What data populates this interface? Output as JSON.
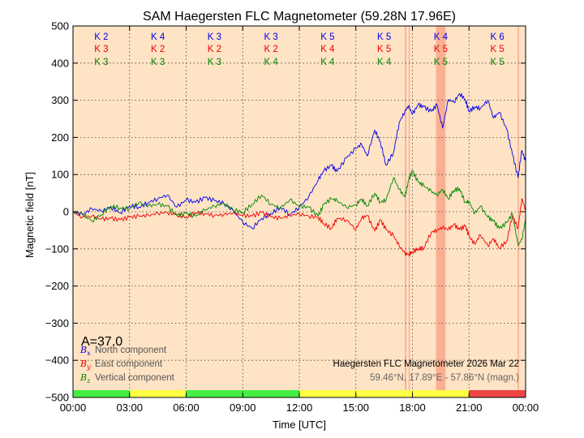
{
  "chart_data": {
    "type": "line",
    "title": "SAM Haegersten FLC Magnetometer (59.28N 17.96E)",
    "xlabel": "Time [UTC]",
    "ylabel": "Magnetic field [nT]",
    "xlim": [
      0,
      24
    ],
    "ylim": [
      -500,
      500
    ],
    "grid": true,
    "x_ticks": [
      {
        "value": 0,
        "label": "00:00"
      },
      {
        "value": 3,
        "label": "03:00"
      },
      {
        "value": 6,
        "label": "06:00"
      },
      {
        "value": 9,
        "label": "09:00"
      },
      {
        "value": 12,
        "label": "12:00"
      },
      {
        "value": 15,
        "label": "15:00"
      },
      {
        "value": 18,
        "label": "18:00"
      },
      {
        "value": 21,
        "label": "21:00"
      },
      {
        "value": 24,
        "label": "00:00"
      }
    ],
    "y_ticks": [
      {
        "value": 500,
        "label": "500"
      },
      {
        "value": 400,
        "label": "400"
      },
      {
        "value": 300,
        "label": "300"
      },
      {
        "value": 200,
        "label": "200"
      },
      {
        "value": 100,
        "label": "100"
      },
      {
        "value": 0,
        "label": "0"
      },
      {
        "value": -100,
        "label": "−100"
      },
      {
        "value": -200,
        "label": "−200"
      },
      {
        "value": -300,
        "label": "−300"
      },
      {
        "value": -400,
        "label": "−400"
      },
      {
        "value": -500,
        "label": "−500"
      }
    ],
    "series": [
      {
        "name": "North component",
        "symbol": "Bx",
        "color": "#0000ee",
        "x": [
          0,
          0.5,
          1,
          1.5,
          2,
          2.5,
          3,
          3.5,
          4,
          4.5,
          5,
          5.5,
          6,
          6.5,
          7,
          7.5,
          8,
          8.5,
          9,
          9.5,
          10,
          10.5,
          11,
          11.5,
          12,
          12.5,
          13,
          13.3,
          13.7,
          14,
          14.5,
          15,
          15.3,
          15.6,
          16,
          16.3,
          16.6,
          17,
          17.3,
          17.6,
          17.8,
          18,
          18.3,
          18.6,
          19,
          19.3,
          19.6,
          19.9,
          20.2,
          20.5,
          20.8,
          21,
          21.3,
          21.6,
          22,
          22.3,
          22.6,
          23,
          23.3,
          23.6,
          23.8,
          24
        ],
        "values": [
          0,
          -8,
          8,
          2,
          12,
          -3,
          16,
          12,
          25,
          35,
          45,
          12,
          32,
          25,
          38,
          30,
          22,
          3,
          -28,
          -45,
          -18,
          -5,
          12,
          -8,
          12,
          40,
          85,
          110,
          125,
          108,
          145,
          170,
          182,
          150,
          220,
          188,
          125,
          160,
          240,
          270,
          285,
          262,
          288,
          282,
          270,
          288,
          225,
          302,
          295,
          318,
          302,
          270,
          282,
          278,
          300,
          252,
          268,
          222,
          155,
          92,
          165,
          135
        ]
      },
      {
        "name": "East component",
        "symbol": "By",
        "color": "#ee0000",
        "x": [
          0,
          0.5,
          1,
          1.5,
          2,
          2.5,
          3,
          3.5,
          4,
          4.5,
          5,
          5.5,
          6,
          6.5,
          7,
          7.5,
          8,
          8.5,
          9,
          9.5,
          10,
          10.5,
          11,
          11.5,
          12,
          12.5,
          13,
          13.3,
          13.7,
          14,
          14.5,
          15,
          15.3,
          15.6,
          16,
          16.3,
          16.6,
          17,
          17.3,
          17.6,
          17.8,
          18,
          18.3,
          18.6,
          19,
          19.3,
          19.6,
          19.9,
          20.2,
          20.5,
          20.8,
          21,
          21.3,
          21.6,
          22,
          22.3,
          22.6,
          23,
          23.3,
          23.6,
          23.8,
          24
        ],
        "values": [
          0,
          -15,
          -12,
          -20,
          -18,
          -22,
          -15,
          -12,
          -10,
          -4,
          -2,
          -8,
          -15,
          -2,
          -5,
          -10,
          -8,
          -3,
          -10,
          -12,
          -2,
          -14,
          -18,
          -10,
          -6,
          -12,
          -15,
          -32,
          -45,
          -18,
          -22,
          -48,
          -18,
          -10,
          -52,
          -22,
          -48,
          -65,
          -92,
          -112,
          -115,
          -108,
          -100,
          -98,
          -55,
          -50,
          -42,
          -48,
          -35,
          -48,
          -38,
          -65,
          -88,
          -62,
          -92,
          -72,
          -98,
          -80,
          -10,
          -45,
          35,
          5
        ]
      },
      {
        "name": "Vertical component",
        "symbol": "Bz",
        "color": "#008800",
        "x": [
          0,
          0.5,
          1,
          1.5,
          2,
          2.5,
          3,
          3.5,
          4,
          4.5,
          5,
          5.5,
          6,
          6.5,
          7,
          7.5,
          8,
          8.5,
          9,
          9.5,
          10,
          10.5,
          11,
          11.5,
          12,
          12.5,
          13,
          13.3,
          13.7,
          14,
          14.5,
          15,
          15.3,
          15.6,
          16,
          16.3,
          16.6,
          17,
          17.3,
          17.6,
          17.8,
          18,
          18.3,
          18.6,
          19,
          19.3,
          19.6,
          19.9,
          20.2,
          20.5,
          20.8,
          21,
          21.3,
          21.6,
          22,
          22.3,
          22.6,
          23,
          23.3,
          23.6,
          23.8,
          24
        ],
        "values": [
          0,
          -5,
          -25,
          -8,
          15,
          10,
          8,
          25,
          15,
          20,
          15,
          -10,
          -5,
          -12,
          5,
          15,
          22,
          5,
          -2,
          20,
          45,
          20,
          10,
          32,
          15,
          12,
          -12,
          20,
          35,
          30,
          12,
          18,
          35,
          15,
          50,
          25,
          32,
          92,
          60,
          40,
          85,
          110,
          80,
          70,
          55,
          45,
          60,
          35,
          58,
          62,
          25,
          28,
          -5,
          15,
          -15,
          -25,
          -45,
          -30,
          -5,
          -90,
          -75,
          -20
        ]
      }
    ],
    "k_index": [
      {
        "x": 1.5,
        "x_k": "K 2",
        "y_k": "K 3",
        "z_k": "K 3"
      },
      {
        "x": 4.5,
        "x_k": "K 4",
        "y_k": "K 2",
        "z_k": "K 3"
      },
      {
        "x": 7.5,
        "x_k": "K 3",
        "y_k": "K 2",
        "z_k": "K 3"
      },
      {
        "x": 10.5,
        "x_k": "K 3",
        "y_k": "K 2",
        "z_k": "K 4"
      },
      {
        "x": 13.5,
        "x_k": "K 5",
        "y_k": "K 4",
        "z_k": "K 4"
      },
      {
        "x": 16.5,
        "x_k": "K 5",
        "y_k": "K 5",
        "z_k": "K 4"
      },
      {
        "x": 19.5,
        "x_k": "K 4",
        "y_k": "K 5",
        "z_k": "K 5"
      },
      {
        "x": 22.5,
        "x_k": "K 6",
        "y_k": "K 5",
        "z_k": "K 5"
      }
    ],
    "highlight_spans": [
      {
        "x0": 17.6,
        "x1": 17.68
      },
      {
        "x0": 17.8,
        "x1": 17.86
      },
      {
        "x0": 19.25,
        "x1": 19.75
      },
      {
        "x0": 23.58,
        "x1": 23.65
      }
    ],
    "status_bar": [
      {
        "x0": 0,
        "x1": 3,
        "color": "#44ee44"
      },
      {
        "x0": 3,
        "x1": 6,
        "color": "#ffff44"
      },
      {
        "x0": 6,
        "x1": 12,
        "color": "#44ee44"
      },
      {
        "x0": 12,
        "x1": 21,
        "color": "#ffff44"
      },
      {
        "x0": 21,
        "x1": 24,
        "color": "#ee4444"
      }
    ],
    "a_index": "A=37.0",
    "annotation_title": "Haegersten FLC Magnetometer 2026 Mar 22",
    "annotation_coords": "59.46°N, 17.89°E - 57.86°N (magn.)",
    "colors": {
      "background": "#fee3c4",
      "highlight": "#f9a88e",
      "grid": "#444444"
    }
  }
}
